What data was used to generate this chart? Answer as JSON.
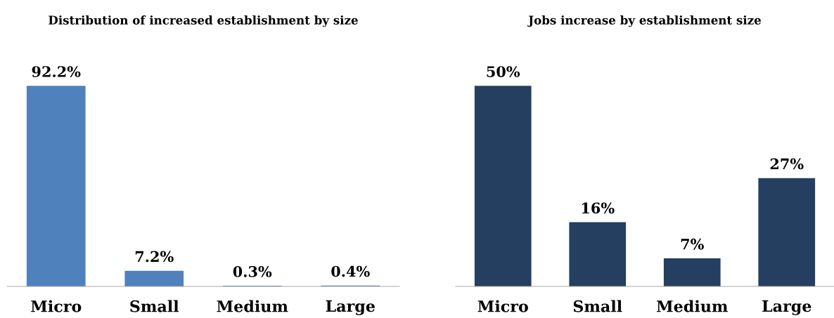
{
  "chart_data": [
    {
      "type": "bar",
      "title": "Distribution of increased establishment by size",
      "categories": [
        "Micro",
        "Small",
        "Medium",
        "Large"
      ],
      "values": [
        92.2,
        7.2,
        0.3,
        0.4
      ],
      "value_labels": [
        "92.2%",
        "7.2%",
        "0.3%",
        "0.4%"
      ],
      "color": "#4f81bd",
      "grid": false,
      "legend": false,
      "tick_labels": "x"
    },
    {
      "type": "bar",
      "title": "Jobs increase by establishment size",
      "categories": [
        "Micro",
        "Small",
        "Medium",
        "Large"
      ],
      "values": [
        50,
        16,
        7,
        27
      ],
      "value_labels": [
        "50%",
        "16%",
        "7%",
        "27%"
      ],
      "color": "#243f60",
      "grid": false,
      "legend": false,
      "tick_labels": "x"
    }
  ]
}
